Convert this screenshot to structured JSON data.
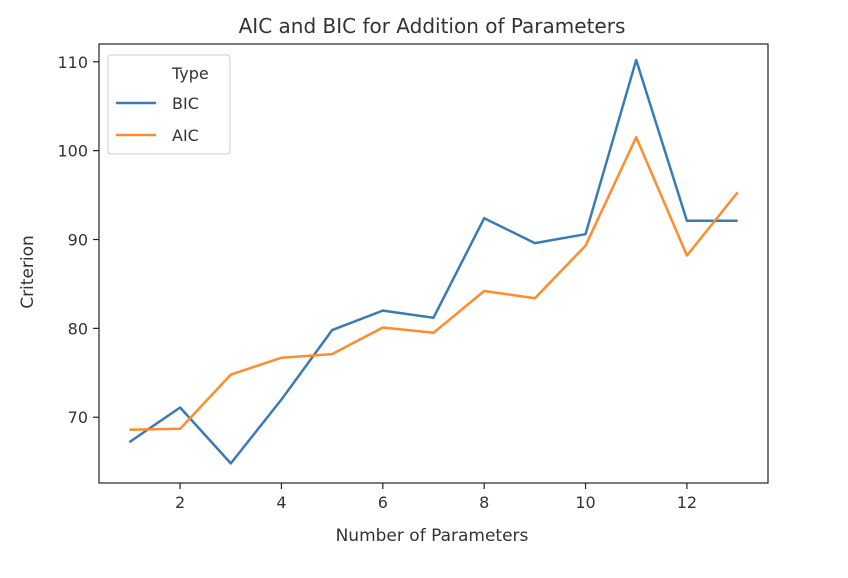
{
  "chart_data": {
    "type": "line",
    "title": "AIC and BIC for Addition of Parameters",
    "xlabel": "Number of Parameters",
    "ylabel": "Criterion",
    "xlim": [
      0.4,
      13.6
    ],
    "ylim": [
      62.6,
      112.0
    ],
    "xticks": [
      2,
      4,
      6,
      8,
      10,
      12
    ],
    "yticks": [
      70,
      80,
      90,
      100,
      110
    ],
    "grid": false,
    "legend": {
      "title": "Type",
      "placement": "top-left"
    },
    "x": [
      1,
      2,
      3,
      4,
      5,
      6,
      7,
      8,
      9,
      10,
      11,
      12,
      13
    ],
    "series": [
      {
        "name": "BIC",
        "color": "#3a7bb4",
        "values": [
          67.2,
          71.1,
          64.8,
          72.0,
          79.8,
          82.0,
          81.2,
          92.4,
          89.6,
          90.6,
          110.2,
          92.1,
          92.1
        ]
      },
      {
        "name": "AIC",
        "color": "#ff8c2e",
        "values": [
          68.6,
          68.7,
          74.8,
          76.7,
          77.1,
          80.1,
          79.5,
          84.2,
          83.4,
          89.3,
          101.5,
          88.2,
          95.3
        ]
      }
    ]
  }
}
